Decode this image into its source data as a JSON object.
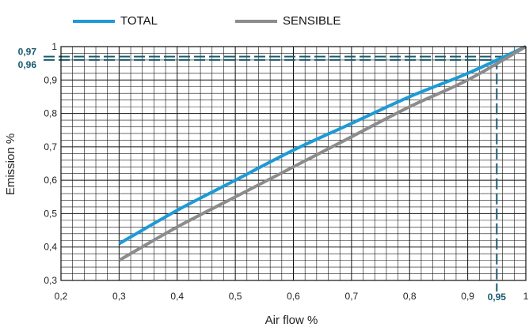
{
  "chart_data": {
    "type": "line",
    "title": "",
    "xlabel": "Air flow %",
    "ylabel": "Emission %",
    "xlim": [
      0.2,
      1.0
    ],
    "ylim": [
      0.3,
      1.0
    ],
    "x_ticks": [
      "0,2",
      "0,3",
      "0,4",
      "0,5",
      "0,6",
      "0,7",
      "0,8",
      "0,9",
      "1"
    ],
    "y_ticks": [
      "0,3",
      "0,4",
      "0,5",
      "0,6",
      "0,7",
      "0,8",
      "0,9",
      "1"
    ],
    "x_tick_values": [
      0.2,
      0.3,
      0.4,
      0.5,
      0.6,
      0.7,
      0.8,
      0.9,
      1.0
    ],
    "y_tick_values": [
      0.3,
      0.4,
      0.5,
      0.6,
      0.7,
      0.8,
      0.9,
      1.0
    ],
    "grid": true,
    "legend_position": "top",
    "series": [
      {
        "name": "TOTAL",
        "color": "#1e9ad6",
        "x": [
          0.3,
          0.4,
          0.5,
          0.6,
          0.7,
          0.8,
          0.9,
          1.0
        ],
        "y": [
          0.41,
          0.51,
          0.6,
          0.69,
          0.77,
          0.85,
          0.92,
          1.0
        ]
      },
      {
        "name": "SENSIBLE",
        "color": "#8c8c8c",
        "x": [
          0.3,
          0.4,
          0.5,
          0.6,
          0.7,
          0.8,
          0.9,
          1.0
        ],
        "y": [
          0.36,
          0.46,
          0.55,
          0.64,
          0.73,
          0.82,
          0.9,
          1.0
        ]
      }
    ],
    "annotations": [
      {
        "label": "0,97",
        "axis": "y",
        "value": 0.97,
        "color": "#1a5a6e"
      },
      {
        "label": "0,96",
        "axis": "y",
        "value": 0.96,
        "color": "#1a5a6e"
      },
      {
        "label": "0,95",
        "axis": "x",
        "value": 0.95,
        "color": "#1a5a6e"
      }
    ]
  }
}
